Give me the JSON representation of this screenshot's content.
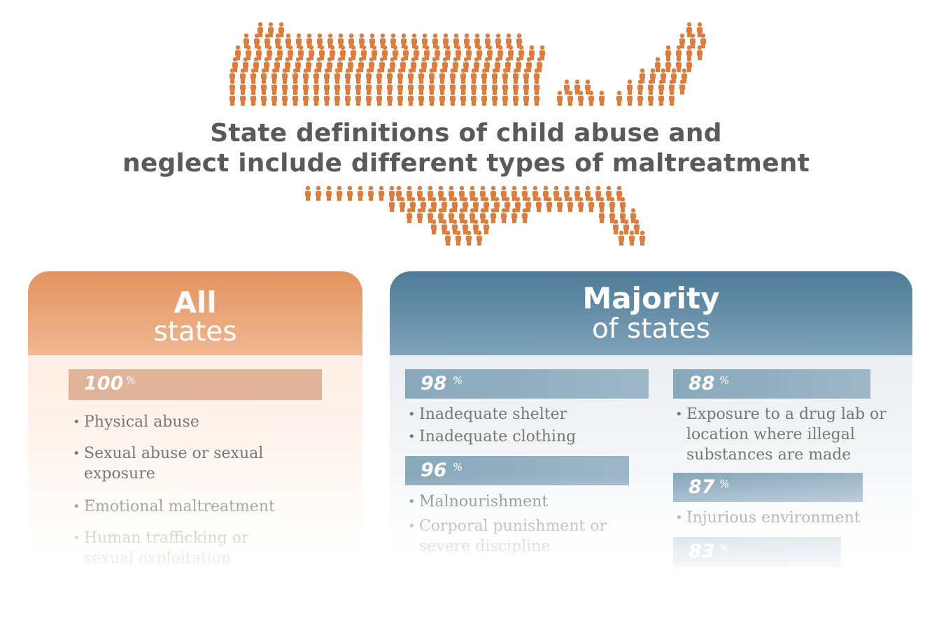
{
  "title": {
    "line1": "State definitions of child abuse and",
    "line2": "neglect include different types of maltreatment"
  },
  "map": {
    "icon": "person-icon",
    "color": "#e07b39"
  },
  "panels": {
    "all": {
      "bold": "All",
      "light": "states",
      "color": "#e2935e",
      "groups": [
        {
          "percent": "100",
          "sign": "%",
          "items": [
            "Physical abuse",
            "Sexual abuse or sexual exposure",
            "Emotional maltreatment",
            "Human trafficking or sexual exploitation"
          ]
        }
      ]
    },
    "majority": {
      "bold": "Majority",
      "light": "of states",
      "color": "#4d7b96",
      "groups": [
        {
          "percent": "98",
          "sign": "%",
          "items": [
            "Inadequate shelter",
            "Inadequate clothing"
          ]
        },
        {
          "percent": "96",
          "sign": "%",
          "items": [
            "Malnourishment",
            "Corporal punishment or severe discipline"
          ]
        },
        {
          "percent": "88",
          "sign": "%",
          "items": [
            "Exposure to a drug lab or location where illegal substances are made"
          ]
        },
        {
          "percent": "87",
          "sign": "%",
          "items": [
            "Injurious environment"
          ]
        },
        {
          "percent": "83",
          "sign": "%",
          "items": []
        }
      ]
    }
  }
}
